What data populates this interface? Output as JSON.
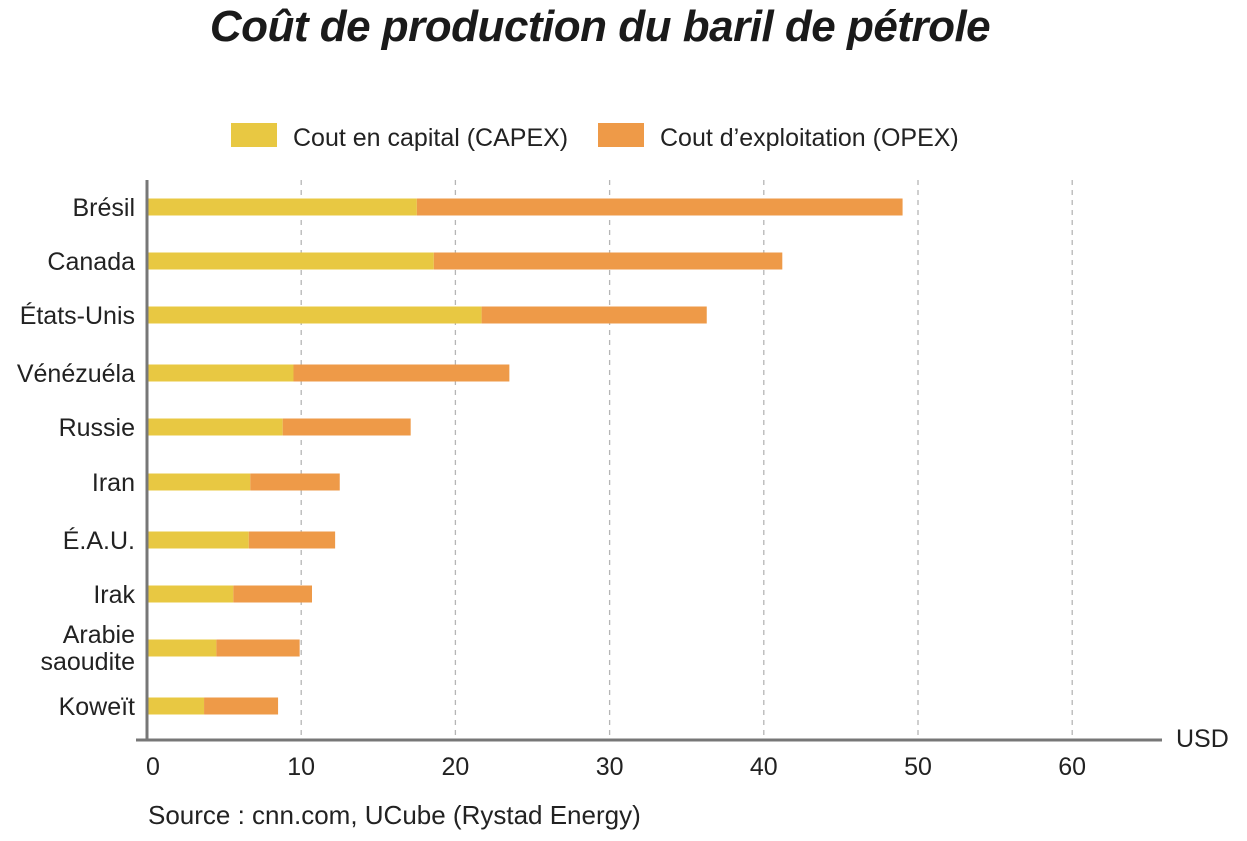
{
  "chart_data": {
    "type": "bar",
    "orientation": "horizontal",
    "stacked": true,
    "title": "Coût de production du baril de pétrole",
    "categories": [
      "Brésil",
      "Canada",
      "États-Unis",
      "Vénézuéla",
      "Russie",
      "Iran",
      "É.A.U.",
      "Irak",
      "Arabie saoudite",
      "Koweït"
    ],
    "series": [
      {
        "name": "Cout en capital (CAPEX)",
        "color": "#E8C842",
        "values": [
          17.5,
          18.6,
          21.7,
          9.5,
          8.8,
          6.7,
          6.6,
          5.6,
          4.5,
          3.7
        ]
      },
      {
        "name": "Cout d’exploitation (OPEX)",
        "color": "#EE9A48",
        "values": [
          31.5,
          22.6,
          14.6,
          14.0,
          8.3,
          5.8,
          5.6,
          5.1,
          5.4,
          4.8
        ]
      }
    ],
    "xlabel": "USD",
    "xlim": [
      0,
      65
    ],
    "xticks": [
      "0",
      "10",
      "20",
      "30",
      "40",
      "50",
      "60"
    ],
    "grid": "vertical dashed",
    "legend_position": "top"
  },
  "source": "Source : cnn.com, UCube (Rystad Energy)"
}
